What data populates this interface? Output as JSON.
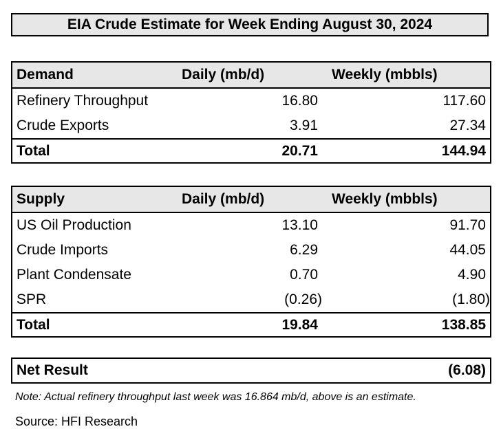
{
  "title": "EIA Crude Estimate for Week Ending August 30, 2024",
  "demand": {
    "header": {
      "label": "Demand",
      "daily": "Daily (mb/d)",
      "weekly": "Weekly (mbbls)"
    },
    "rows": [
      {
        "label": "Refinery Throughput",
        "daily": "16.80",
        "weekly": "117.60"
      },
      {
        "label": "Crude Exports",
        "daily": "3.91",
        "weekly": "27.34"
      }
    ],
    "total": {
      "label": "Total",
      "daily": "20.71",
      "weekly": "144.94"
    }
  },
  "supply": {
    "header": {
      "label": "Supply",
      "daily": "Daily (mb/d)",
      "weekly": "Weekly (mbbls)"
    },
    "rows": [
      {
        "label": "US Oil Production",
        "daily": "13.10",
        "weekly": "91.70"
      },
      {
        "label": "Crude Imports",
        "daily": "6.29",
        "weekly": "44.05"
      },
      {
        "label": "Plant Condensate",
        "daily": "0.70",
        "weekly": "4.90"
      },
      {
        "label": "SPR",
        "daily": "(0.26)",
        "weekly": "(1.80)"
      }
    ],
    "total": {
      "label": "Total",
      "daily": "19.84",
      "weekly": "138.85"
    }
  },
  "net_result": {
    "label": "Net Result",
    "value": "(6.08)"
  },
  "note": "Note: Actual refinery throughput last week was 16.864 mb/d, above is an estimate.",
  "source": "Source: HFI Research"
}
